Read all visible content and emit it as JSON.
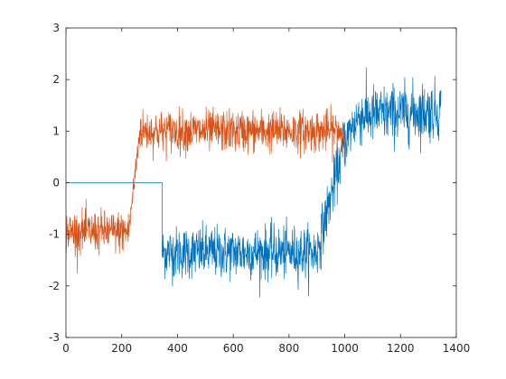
{
  "chart_data": {
    "type": "line",
    "title": "",
    "xlabel": "",
    "ylabel": "",
    "xlim": [
      0,
      1400
    ],
    "ylim": [
      -3,
      3
    ],
    "xticks": [
      0,
      200,
      400,
      600,
      800,
      1000,
      1200,
      1400
    ],
    "yticks": [
      -3,
      -2,
      -1,
      0,
      1,
      2,
      3
    ],
    "xtick_labels": [
      "0",
      "200",
      "400",
      "600",
      "800",
      "1000",
      "1200",
      "1400"
    ],
    "ytick_labels": [
      "-3",
      "-2",
      "-1",
      "0",
      "1",
      "2",
      "3"
    ],
    "grid": false,
    "legend": "none",
    "series": [
      {
        "color": "#0072BD",
        "segments": [
          {
            "x": [
              0,
              345
            ],
            "y": [
              0,
              0
            ],
            "noise_sd": 0
          },
          {
            "x": [
              345,
              900
            ],
            "y": [
              -1.35,
              -1.35
            ],
            "noise_sd": 0.25
          },
          {
            "x": [
              900,
              1000
            ],
            "y": [
              -1.35,
              0.8
            ],
            "noise_sd": 0.25
          },
          {
            "x": [
              1000,
              1050
            ],
            "y": [
              0.8,
              1.3
            ],
            "noise_sd": 0.25
          },
          {
            "x": [
              1050,
              1345
            ],
            "y": [
              1.3,
              1.4
            ],
            "noise_sd": 0.28
          }
        ]
      },
      {
        "color": "#D95319",
        "segments": [
          {
            "x": [
              0,
              225
            ],
            "y": [
              -0.95,
              -0.95
            ],
            "noise_sd": 0.2
          },
          {
            "x": [
              225,
              265
            ],
            "y": [
              -0.95,
              1.0
            ],
            "noise_sd": 0.15
          },
          {
            "x": [
              265,
              1000
            ],
            "y": [
              1.0,
              1.0
            ],
            "noise_sd": 0.2
          }
        ]
      }
    ]
  }
}
